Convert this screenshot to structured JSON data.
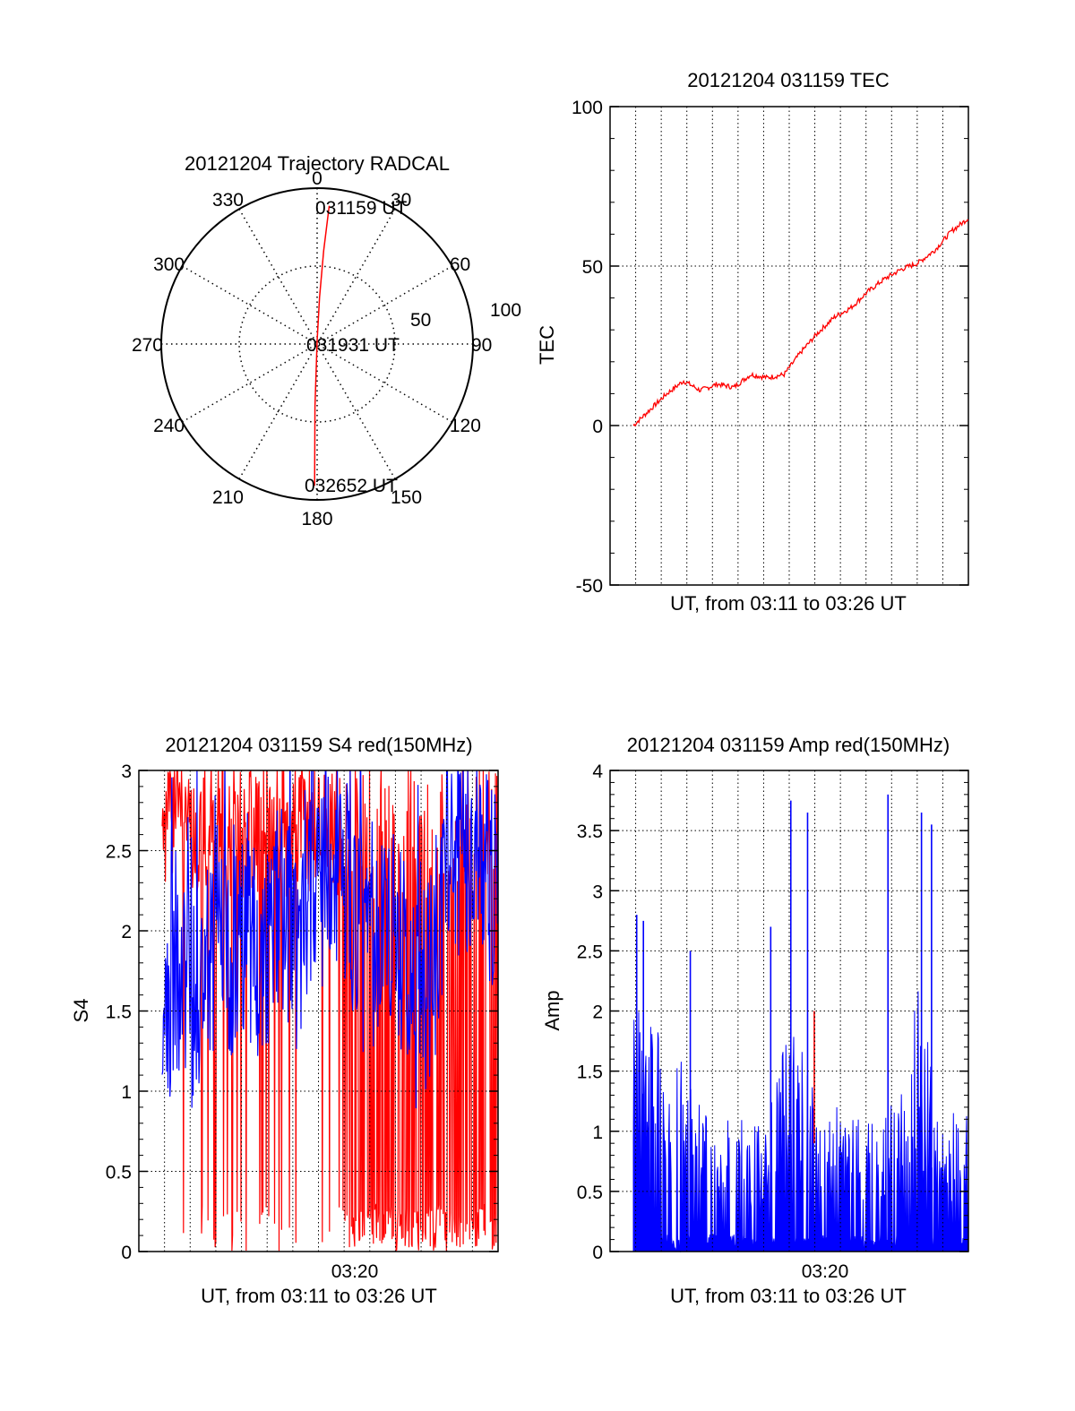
{
  "colors": {
    "primary_trace": "#ff0000",
    "secondary_trace": "#0000ff",
    "axes": "#000000",
    "grid": "#000000"
  },
  "chart_data": [
    {
      "id": "trajectory",
      "type": "polar",
      "title": "20121204 Trajectory RADCAL",
      "azimuth_labels": [
        "0",
        "30",
        "60",
        "90",
        "120",
        "150",
        "180",
        "210",
        "240",
        "270",
        "300",
        "330"
      ],
      "radial_labels": [
        "50",
        "100"
      ],
      "radial_range": [
        0,
        100
      ],
      "grid": true,
      "annotations": [
        "031159 UT",
        "031931 UT",
        "032652 UT"
      ],
      "trajectory": {
        "color": "#ff0000",
        "points": [
          {
            "azimuth": 5,
            "radius": 89
          },
          {
            "azimuth": 4,
            "radius": 60
          },
          {
            "azimuth": 3,
            "radius": 30
          },
          {
            "azimuth": 0,
            "radius": 2
          },
          {
            "azimuth": 182,
            "radius": 40
          },
          {
            "azimuth": 181,
            "radius": 91
          }
        ]
      }
    },
    {
      "id": "tec",
      "type": "line",
      "title": "20121204 031159 TEC",
      "xlabel": "UT, from 03:11 to 03:26 UT",
      "ylabel": "TEC",
      "ylim": [
        -50,
        100
      ],
      "yticks": [
        "-50",
        "0",
        "50",
        "100"
      ],
      "grid": true,
      "series": [
        {
          "color": "#ff0000",
          "x": [
            0,
            0.05,
            0.1,
            0.15,
            0.2,
            0.25,
            0.3,
            0.35,
            0.4,
            0.45,
            0.5,
            0.55,
            0.6,
            0.65,
            0.7,
            0.75,
            0.8,
            0.85,
            0.9,
            0.95,
            1.0
          ],
          "values": [
            0,
            5,
            10,
            14,
            11,
            13,
            12,
            16,
            15,
            16,
            23,
            29,
            34,
            37,
            42,
            46,
            49,
            51,
            55,
            61,
            65
          ]
        }
      ]
    },
    {
      "id": "s4",
      "type": "line",
      "title": "20121204 031159 S4 red(150MHz)",
      "xlabel": "UT, from 03:11 to 03:26 UT",
      "ylabel": "S4",
      "xticks": [
        "03:20"
      ],
      "ylim": [
        0,
        3
      ],
      "yticks": [
        "0",
        "0.5",
        "1",
        "1.5",
        "2",
        "2.5",
        "3"
      ],
      "grid": true,
      "series": [
        {
          "color": "#ff0000",
          "style": "saturated noise, dense red fill from ~0.56 of x-range onward"
        },
        {
          "color": "#0000ff",
          "x": [
            0,
            0.05,
            0.1,
            0.15,
            0.2,
            0.25,
            0.3,
            0.35,
            0.4,
            0.45,
            0.5,
            0.55,
            0.6,
            0.65,
            0.7,
            0.75,
            0.8,
            0.85,
            0.9,
            0.95,
            1.0
          ],
          "values": [
            1.2,
            1.7,
            1.5,
            1.9,
            1.7,
            2.0,
            1.8,
            2.2,
            1.9,
            2.4,
            2.1,
            2.3,
            1.8,
            1.9,
            2.0,
            1.5,
            1.7,
            2.3,
            2.5,
            2.4,
            2.2
          ]
        }
      ]
    },
    {
      "id": "amp",
      "type": "line",
      "title": "20121204 031159 Amp red(150MHz)",
      "xlabel": "UT, from 03:11 to 03:26 UT",
      "ylabel": "Amp",
      "xticks": [
        "03:20"
      ],
      "ylim": [
        0,
        4
      ],
      "yticks": [
        "0",
        "0.5",
        "1",
        "1.5",
        "2",
        "2.5",
        "3",
        "3.5",
        "4"
      ],
      "grid": true,
      "series": [
        {
          "color": "#ff0000",
          "spike": {
            "x": 0.54,
            "value": 2.0
          }
        },
        {
          "color": "#0000ff",
          "x": [
            0,
            0.05,
            0.1,
            0.15,
            0.2,
            0.25,
            0.3,
            0.35,
            0.4,
            0.45,
            0.5,
            0.55,
            0.6,
            0.65,
            0.7,
            0.75,
            0.8,
            0.85,
            0.9,
            0.95,
            1.0
          ],
          "values": [
            1.6,
            1.4,
            1.3,
            1.2,
            0.9,
            0.8,
            0.85,
            0.8,
            0.9,
            1.3,
            1.4,
            0.85,
            0.9,
            0.85,
            0.8,
            0.9,
            1.1,
            1.7,
            1.0,
            0.85,
            0.9
          ],
          "peaks": [
            {
              "x": 0.01,
              "value": 2.8
            },
            {
              "x": 0.03,
              "value": 2.75
            },
            {
              "x": 0.17,
              "value": 2.5
            },
            {
              "x": 0.41,
              "value": 2.7
            },
            {
              "x": 0.47,
              "value": 3.75
            },
            {
              "x": 0.52,
              "value": 3.65
            },
            {
              "x": 0.76,
              "value": 3.8
            },
            {
              "x": 0.86,
              "value": 3.65
            },
            {
              "x": 0.89,
              "value": 3.55
            }
          ]
        }
      ]
    }
  ]
}
